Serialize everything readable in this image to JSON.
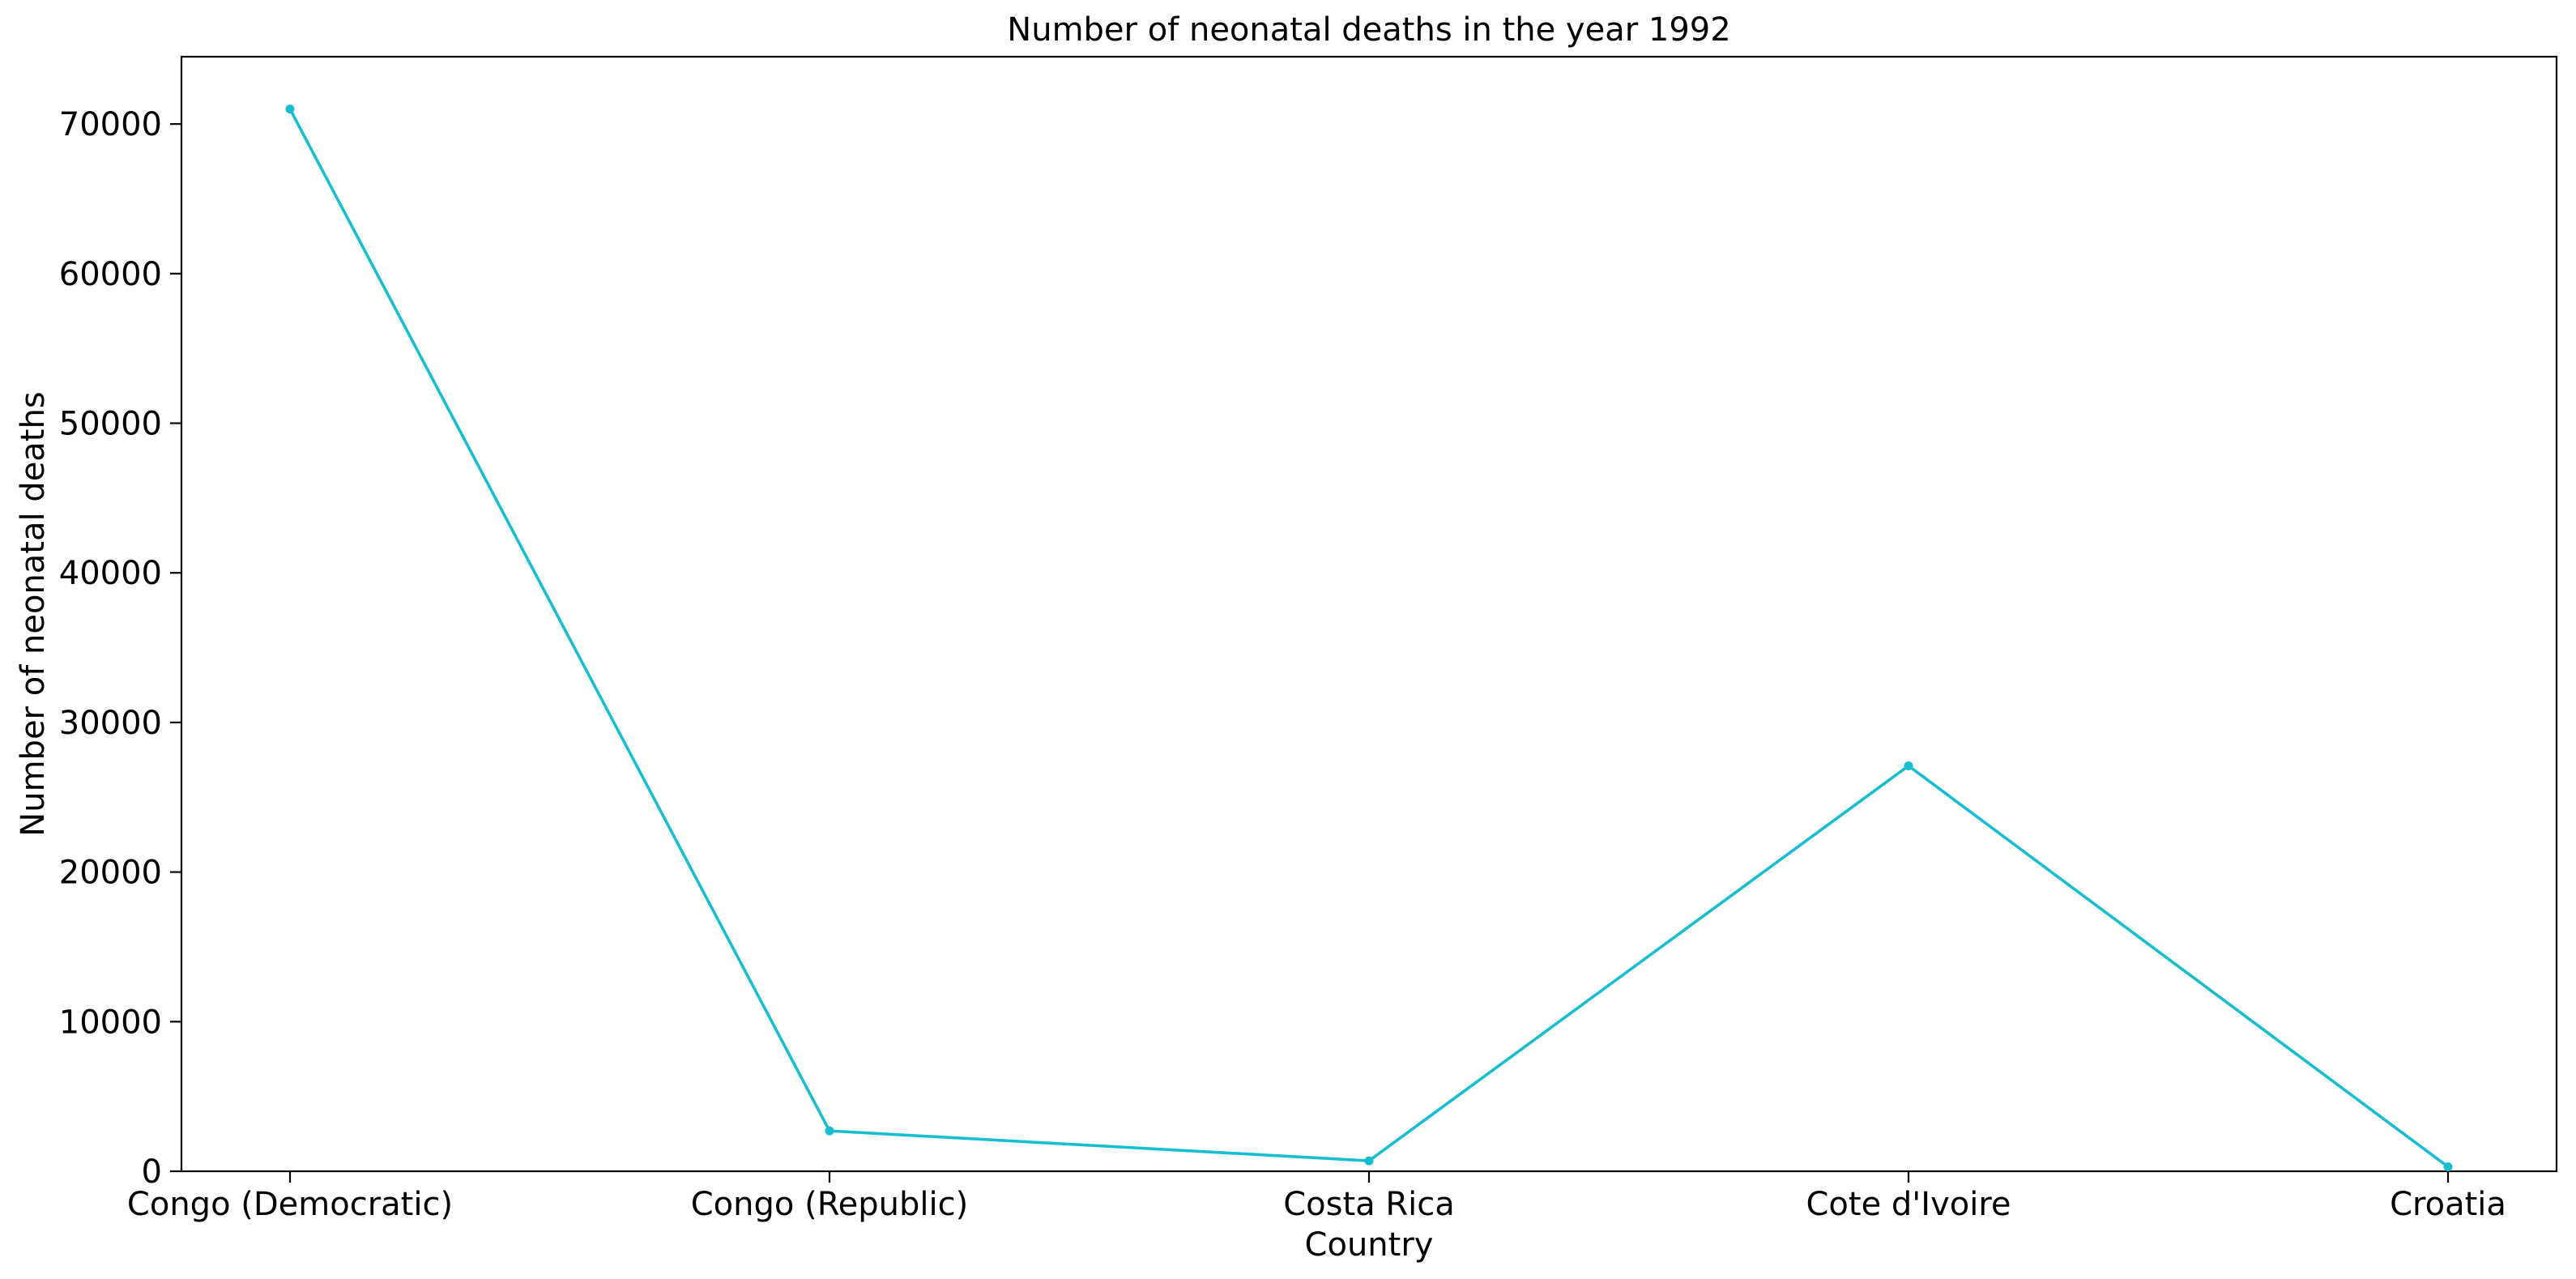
{
  "chart_data": {
    "type": "line",
    "title": "Number of neonatal deaths in the year 1992",
    "xlabel": "Country",
    "ylabel": "Number of neonatal deaths",
    "categories": [
      "Congo (Democratic)",
      "Congo (Republic)",
      "Costa Rica",
      "Cote d'Ivoire",
      "Croatia"
    ],
    "series": [
      {
        "values": [
          71000,
          2700,
          700,
          27100,
          300
        ]
      }
    ],
    "ylim": [
      0,
      74500
    ],
    "yticks": [
      0,
      10000,
      20000,
      30000,
      40000,
      50000,
      60000,
      70000
    ],
    "ytick_labels": [
      "0",
      "10000",
      "20000",
      "30000",
      "40000",
      "50000",
      "60000",
      "70000"
    ],
    "grid": false,
    "legend": "none",
    "colors": {
      "line": "#17becf",
      "axes": "#000000",
      "background": "#ffffff"
    }
  }
}
